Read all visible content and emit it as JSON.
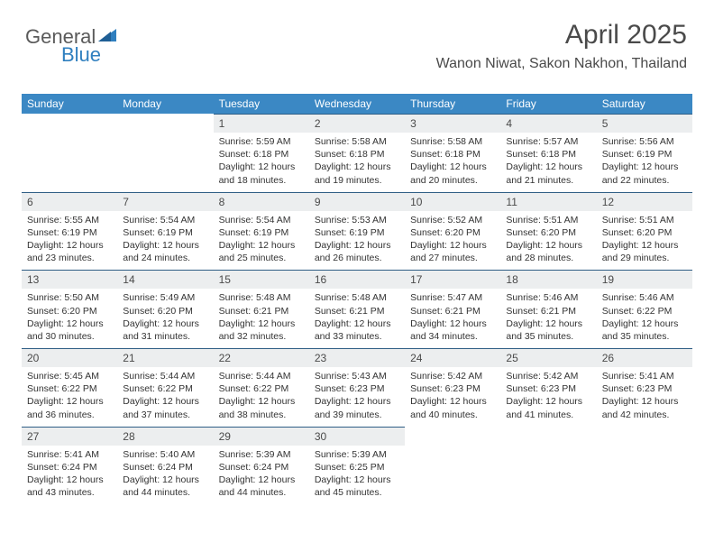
{
  "logo": {
    "part1": "General",
    "part2": "Blue"
  },
  "title": "April 2025",
  "location": "Wanon Niwat, Sakon Nakhon, Thailand",
  "colors": {
    "header_bg": "#3b88c4",
    "header_text": "#ffffff",
    "daynum_bg": "#eceeef",
    "daynum_border": "#2f5e85",
    "logo_gray": "#5a5a5a",
    "logo_blue": "#2f7fbf"
  },
  "weekdays": [
    "Sunday",
    "Monday",
    "Tuesday",
    "Wednesday",
    "Thursday",
    "Friday",
    "Saturday"
  ],
  "weeks": [
    [
      null,
      null,
      {
        "n": "1",
        "sr": "5:59 AM",
        "ss": "6:18 PM",
        "dl": "12 hours and 18 minutes."
      },
      {
        "n": "2",
        "sr": "5:58 AM",
        "ss": "6:18 PM",
        "dl": "12 hours and 19 minutes."
      },
      {
        "n": "3",
        "sr": "5:58 AM",
        "ss": "6:18 PM",
        "dl": "12 hours and 20 minutes."
      },
      {
        "n": "4",
        "sr": "5:57 AM",
        "ss": "6:18 PM",
        "dl": "12 hours and 21 minutes."
      },
      {
        "n": "5",
        "sr": "5:56 AM",
        "ss": "6:19 PM",
        "dl": "12 hours and 22 minutes."
      }
    ],
    [
      {
        "n": "6",
        "sr": "5:55 AM",
        "ss": "6:19 PM",
        "dl": "12 hours and 23 minutes."
      },
      {
        "n": "7",
        "sr": "5:54 AM",
        "ss": "6:19 PM",
        "dl": "12 hours and 24 minutes."
      },
      {
        "n": "8",
        "sr": "5:54 AM",
        "ss": "6:19 PM",
        "dl": "12 hours and 25 minutes."
      },
      {
        "n": "9",
        "sr": "5:53 AM",
        "ss": "6:19 PM",
        "dl": "12 hours and 26 minutes."
      },
      {
        "n": "10",
        "sr": "5:52 AM",
        "ss": "6:20 PM",
        "dl": "12 hours and 27 minutes."
      },
      {
        "n": "11",
        "sr": "5:51 AM",
        "ss": "6:20 PM",
        "dl": "12 hours and 28 minutes."
      },
      {
        "n": "12",
        "sr": "5:51 AM",
        "ss": "6:20 PM",
        "dl": "12 hours and 29 minutes."
      }
    ],
    [
      {
        "n": "13",
        "sr": "5:50 AM",
        "ss": "6:20 PM",
        "dl": "12 hours and 30 minutes."
      },
      {
        "n": "14",
        "sr": "5:49 AM",
        "ss": "6:20 PM",
        "dl": "12 hours and 31 minutes."
      },
      {
        "n": "15",
        "sr": "5:48 AM",
        "ss": "6:21 PM",
        "dl": "12 hours and 32 minutes."
      },
      {
        "n": "16",
        "sr": "5:48 AM",
        "ss": "6:21 PM",
        "dl": "12 hours and 33 minutes."
      },
      {
        "n": "17",
        "sr": "5:47 AM",
        "ss": "6:21 PM",
        "dl": "12 hours and 34 minutes."
      },
      {
        "n": "18",
        "sr": "5:46 AM",
        "ss": "6:21 PM",
        "dl": "12 hours and 35 minutes."
      },
      {
        "n": "19",
        "sr": "5:46 AM",
        "ss": "6:22 PM",
        "dl": "12 hours and 35 minutes."
      }
    ],
    [
      {
        "n": "20",
        "sr": "5:45 AM",
        "ss": "6:22 PM",
        "dl": "12 hours and 36 minutes."
      },
      {
        "n": "21",
        "sr": "5:44 AM",
        "ss": "6:22 PM",
        "dl": "12 hours and 37 minutes."
      },
      {
        "n": "22",
        "sr": "5:44 AM",
        "ss": "6:22 PM",
        "dl": "12 hours and 38 minutes."
      },
      {
        "n": "23",
        "sr": "5:43 AM",
        "ss": "6:23 PM",
        "dl": "12 hours and 39 minutes."
      },
      {
        "n": "24",
        "sr": "5:42 AM",
        "ss": "6:23 PM",
        "dl": "12 hours and 40 minutes."
      },
      {
        "n": "25",
        "sr": "5:42 AM",
        "ss": "6:23 PM",
        "dl": "12 hours and 41 minutes."
      },
      {
        "n": "26",
        "sr": "5:41 AM",
        "ss": "6:23 PM",
        "dl": "12 hours and 42 minutes."
      }
    ],
    [
      {
        "n": "27",
        "sr": "5:41 AM",
        "ss": "6:24 PM",
        "dl": "12 hours and 43 minutes."
      },
      {
        "n": "28",
        "sr": "5:40 AM",
        "ss": "6:24 PM",
        "dl": "12 hours and 44 minutes."
      },
      {
        "n": "29",
        "sr": "5:39 AM",
        "ss": "6:24 PM",
        "dl": "12 hours and 44 minutes."
      },
      {
        "n": "30",
        "sr": "5:39 AM",
        "ss": "6:25 PM",
        "dl": "12 hours and 45 minutes."
      },
      null,
      null,
      null
    ]
  ],
  "labels": {
    "sunrise": "Sunrise:",
    "sunset": "Sunset:",
    "daylight": "Daylight:"
  }
}
